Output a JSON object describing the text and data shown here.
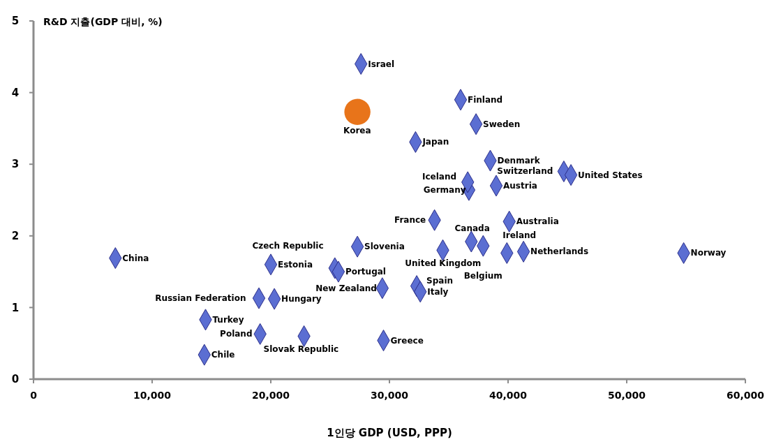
{
  "chart_data": {
    "type": "scatter",
    "ylabel": "R&D 지출(GDP 대비, %)",
    "xlabel": "1인당 GDP (USD, PPP)",
    "xlim": [
      0,
      60000
    ],
    "ylim": [
      0,
      5
    ],
    "xticks": [
      0,
      {
        "value": 10000,
        "label": "10,000"
      },
      {
        "value": 20000,
        "label": "20,000"
      },
      {
        "value": 30000,
        "label": "30,000"
      },
      {
        "value": 40000,
        "label": "40,000"
      },
      {
        "value": 50000,
        "label": "50,000"
      },
      {
        "value": 60000,
        "label": "60,000"
      }
    ],
    "yticks": [
      0,
      1,
      2,
      3,
      4,
      5
    ],
    "grid": false,
    "series": [
      {
        "color": "#5b6ed2",
        "marker": "diamond",
        "x": [
          27600,
          36000,
          37300,
          32200,
          38500,
          44700,
          45300,
          36700,
          36600,
          39000,
          33800,
          40100,
          34500,
          36900,
          37900,
          39900,
          41300,
          54800,
          27300,
          20000,
          25400,
          25700,
          29400,
          32300,
          32600,
          19000,
          20300,
          14500,
          19100,
          22800,
          29500,
          14400,
          6900
        ],
        "values": [
          4.4,
          3.9,
          3.56,
          3.31,
          3.05,
          2.9,
          2.85,
          2.64,
          2.75,
          2.7,
          2.22,
          2.2,
          1.8,
          1.92,
          1.86,
          1.76,
          1.78,
          1.76,
          1.85,
          1.6,
          1.55,
          1.5,
          1.27,
          1.3,
          1.22,
          1.13,
          1.12,
          0.83,
          0.63,
          0.6,
          0.54,
          0.34,
          1.69
        ]
      },
      {
        "color": "#e8741a",
        "marker": "circle",
        "x": [
          27300
        ],
        "values": [
          3.73
        ]
      }
    ],
    "annotations": [
      {
        "text": "Israel",
        "x": 27600,
        "y": 4.4
      },
      {
        "text": "Korea",
        "x": 27300,
        "y": 3.73
      },
      {
        "text": "Finland",
        "x": 36000,
        "y": 3.9
      },
      {
        "text": "Sweden",
        "x": 37300,
        "y": 3.56
      },
      {
        "text": "Japan",
        "x": 32200,
        "y": 3.31
      },
      {
        "text": "Denmark",
        "x": 38500,
        "y": 3.05
      },
      {
        "text": "Switzerland",
        "x": 44700,
        "y": 2.9
      },
      {
        "text": "United States",
        "x": 45300,
        "y": 2.85
      },
      {
        "text": "Germany",
        "x": 36700,
        "y": 2.64
      },
      {
        "text": "Iceland",
        "x": 36600,
        "y": 2.75
      },
      {
        "text": "Austria",
        "x": 39000,
        "y": 2.7
      },
      {
        "text": "France",
        "x": 33800,
        "y": 2.22
      },
      {
        "text": "Australia",
        "x": 40100,
        "y": 2.2
      },
      {
        "text": "United Kingdom",
        "x": 34500,
        "y": 1.8
      },
      {
        "text": "Canada",
        "x": 36900,
        "y": 1.92
      },
      {
        "text": "Belgium",
        "x": 37900,
        "y": 1.86
      },
      {
        "text": "Ireland",
        "x": 39900,
        "y": 1.76
      },
      {
        "text": "Netherlands",
        "x": 41300,
        "y": 1.78
      },
      {
        "text": "Norway",
        "x": 54800,
        "y": 1.76
      },
      {
        "text": "Slovenia",
        "x": 27300,
        "y": 1.85
      },
      {
        "text": "Estonia",
        "x": 20000,
        "y": 1.6
      },
      {
        "text": "Czech Republic",
        "x": 25400,
        "y": 1.55
      },
      {
        "text": "Portugal",
        "x": 25700,
        "y": 1.5
      },
      {
        "text": "New Zealand",
        "x": 29400,
        "y": 1.27
      },
      {
        "text": "Spain",
        "x": 32300,
        "y": 1.3
      },
      {
        "text": "Italy",
        "x": 32600,
        "y": 1.22
      },
      {
        "text": "Russian Federation",
        "x": 19000,
        "y": 1.13
      },
      {
        "text": "Hungary",
        "x": 20300,
        "y": 1.12
      },
      {
        "text": "Turkey",
        "x": 14500,
        "y": 0.83
      },
      {
        "text": "Poland",
        "x": 19100,
        "y": 0.63
      },
      {
        "text": "Slovak Republic",
        "x": 22800,
        "y": 0.6
      },
      {
        "text": "Greece",
        "x": 29500,
        "y": 0.54
      },
      {
        "text": "Chile",
        "x": 14400,
        "y": 0.34
      },
      {
        "text": "China",
        "x": 6900,
        "y": 1.69
      }
    ]
  }
}
